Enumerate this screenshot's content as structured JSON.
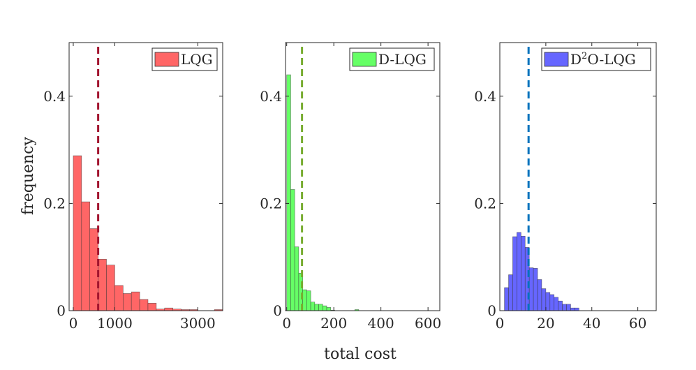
{
  "figure": {
    "ylabel": "frequency",
    "xlabel": "total cost"
  },
  "chart_data": [
    {
      "type": "bar",
      "legend": "LQG",
      "legend_placement": "top-right",
      "bar_color": "#ff6666",
      "line_color": "#a2142f",
      "bin_start": 0,
      "bin_width": 200,
      "values": [
        0.289,
        0.203,
        0.153,
        0.096,
        0.085,
        0.047,
        0.032,
        0.035,
        0.021,
        0.014,
        0.003,
        0.005,
        0.003,
        0.002,
        0.002,
        0.0,
        0.0,
        0.002
      ],
      "mean_line": 600,
      "xlim": [
        -100,
        3600
      ],
      "ylim": [
        0,
        0.5
      ],
      "xticks": [
        0,
        1000,
        3000
      ],
      "yticks": [
        0,
        0.2,
        0.4
      ],
      "yticklabels": [
        "0",
        "0.2",
        "0.4"
      ]
    },
    {
      "type": "bar",
      "legend": "D-LQG",
      "legend_placement": "top-right",
      "bar_color": "#66ff66",
      "line_color": "#77ac30",
      "bin_start": 0,
      "bin_width": 17,
      "values": [
        0.44,
        0.226,
        0.119,
        0.07,
        0.039,
        0.037,
        0.016,
        0.012,
        0.012,
        0.009,
        0.006,
        0.001,
        0.0,
        0.0,
        0.0,
        0.0,
        0.0,
        0.002
      ],
      "mean_line": 65,
      "xlim": [
        -5,
        650
      ],
      "ylim": [
        0,
        0.5
      ],
      "xticks": [
        0,
        200,
        400,
        600
      ],
      "yticks": [
        0,
        0.2,
        0.4
      ],
      "yticklabels": [
        "0",
        "0.2",
        "0.4"
      ]
    },
    {
      "type": "bar",
      "legend": "D²O-LQG",
      "legend_base": "D",
      "legend_sup": "2",
      "legend_rest": "O-LQG",
      "legend_placement": "top-right",
      "bar_color": "#6666ff",
      "line_color": "#0072bd",
      "bin_start": 2,
      "bin_width": 1.8,
      "values": [
        0.043,
        0.067,
        0.138,
        0.146,
        0.139,
        0.118,
        0.08,
        0.079,
        0.058,
        0.041,
        0.034,
        0.03,
        0.025,
        0.018,
        0.012,
        0.012,
        0.005,
        0.005
      ],
      "mean_line": 12.5,
      "xlim": [
        0,
        68
      ],
      "ylim": [
        0,
        0.5
      ],
      "xticks": [
        0,
        20,
        40,
        60
      ],
      "yticks": [
        0,
        0.2,
        0.4
      ],
      "yticklabels": [
        "0",
        "0.2",
        "0.4"
      ]
    }
  ]
}
